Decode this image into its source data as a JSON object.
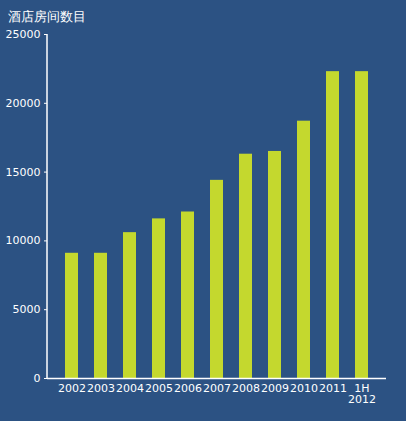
{
  "chart_data": {
    "type": "bar",
    "title": "酒店房间数目",
    "categories": [
      "2002",
      "2003",
      "2004",
      "2005",
      "2006",
      "2007",
      "2008",
      "2009",
      "2010",
      "2011",
      "1H 2012"
    ],
    "values": [
      9100,
      9100,
      10600,
      11600,
      12100,
      14400,
      16300,
      16500,
      18700,
      22300,
      22300
    ],
    "color": "#c4d82e",
    "ylim": [
      0,
      25000
    ],
    "yticks": [
      0,
      5000,
      10000,
      15000,
      20000,
      25000
    ],
    "grid": false
  }
}
